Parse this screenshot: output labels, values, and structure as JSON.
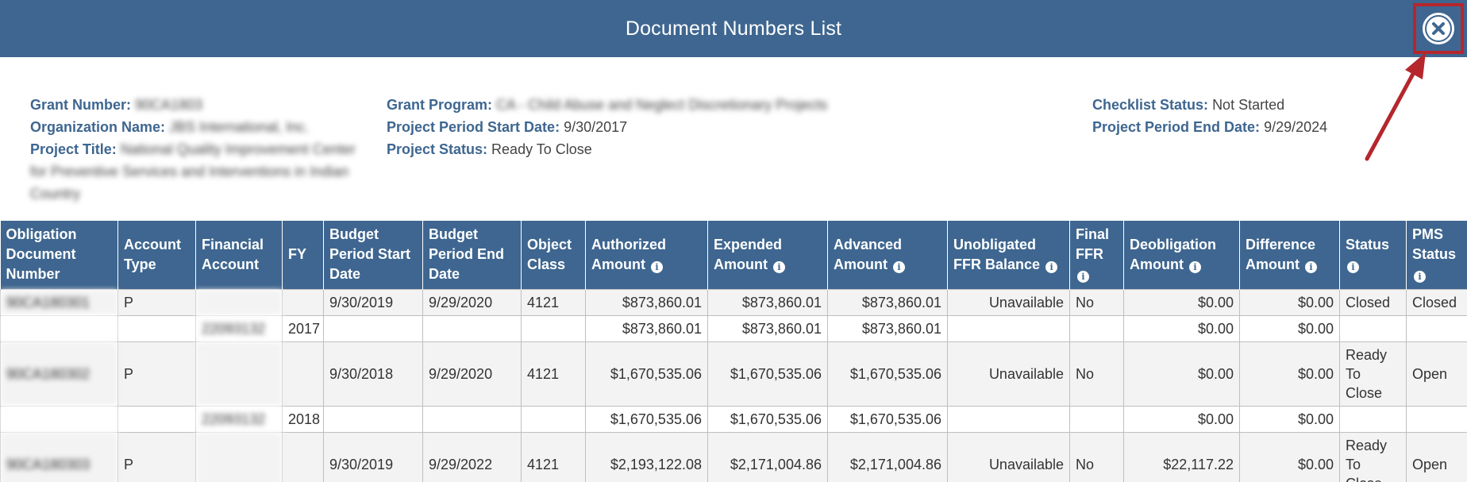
{
  "dialog": {
    "title": "Document Numbers List"
  },
  "info": {
    "col1": [
      {
        "label": "Grant Number:",
        "value": "90CA1803"
      },
      {
        "label": "Organization Name:",
        "value": "JBS International, Inc."
      },
      {
        "label": "Project Title:",
        "value": "National Quality Improvement Center for Preventive Services and Interventions in Indian Country"
      }
    ],
    "col2": [
      {
        "label": "Grant Program:",
        "value": "CA - Child Abuse and Neglect Discretionary Projects"
      },
      {
        "label": "Project Period Start Date:",
        "value": "9/30/2017"
      },
      {
        "label": "Project Status:",
        "value": "Ready To Close"
      }
    ],
    "col3": [
      {
        "label": "Checklist Status:",
        "value": "Not Started"
      },
      {
        "label": "Project Period End Date:",
        "value": "9/29/2024"
      }
    ]
  },
  "table": {
    "headers": [
      "Obligation Document Number",
      "Account Type",
      "Financial Account",
      "FY",
      "Budget Period Start Date",
      "Budget Period End Date",
      "Object Class",
      "Authorized Amount",
      "Expended Amount",
      "Advanced Amount",
      "Unobligated FFR Balance",
      "Final FFR",
      "Deobligation Amount",
      "Difference Amount",
      "Status",
      "PMS Status"
    ],
    "rows": [
      {
        "kind": "main",
        "cells": [
          "90CA180301",
          "P",
          "",
          "",
          "9/30/2019",
          "9/29/2020",
          "4121",
          "$873,860.01",
          "$873,860.01",
          "$873,860.01",
          "Unavailable",
          "No",
          "$0.00",
          "$0.00",
          "Closed",
          "Closed"
        ]
      },
      {
        "kind": "sub",
        "cells": [
          "",
          "",
          "22093132",
          "2017",
          "",
          "",
          "",
          "$873,860.01",
          "$873,860.01",
          "$873,860.01",
          "",
          "",
          "$0.00",
          "$0.00",
          "",
          ""
        ]
      },
      {
        "kind": "main",
        "cells": [
          "90CA180302",
          "P",
          "",
          "",
          "9/30/2018",
          "9/29/2020",
          "4121",
          "$1,670,535.06",
          "$1,670,535.06",
          "$1,670,535.06",
          "Unavailable",
          "No",
          "$0.00",
          "$0.00",
          "Ready To Close",
          "Open"
        ]
      },
      {
        "kind": "sub",
        "cells": [
          "",
          "",
          "22093132",
          "2018",
          "",
          "",
          "",
          "$1,670,535.06",
          "$1,670,535.06",
          "$1,670,535.06",
          "",
          "",
          "$0.00",
          "$0.00",
          "",
          ""
        ]
      },
      {
        "kind": "main",
        "cells": [
          "90CA180303",
          "P",
          "",
          "",
          "9/30/2019",
          "9/29/2022",
          "4121",
          "$2,193,122.08",
          "$2,171,004.86",
          "$2,171,004.86",
          "Unavailable",
          "No",
          "$22,117.22",
          "$0.00",
          "Ready To Close",
          "Open"
        ]
      }
    ]
  },
  "colors": {
    "header_blue": "#3e6690",
    "highlight_red": "#b5262d"
  },
  "icons": {
    "close": "close-circle-icon",
    "info": "info-circle-icon",
    "arrow": "annotation-arrow-icon"
  }
}
